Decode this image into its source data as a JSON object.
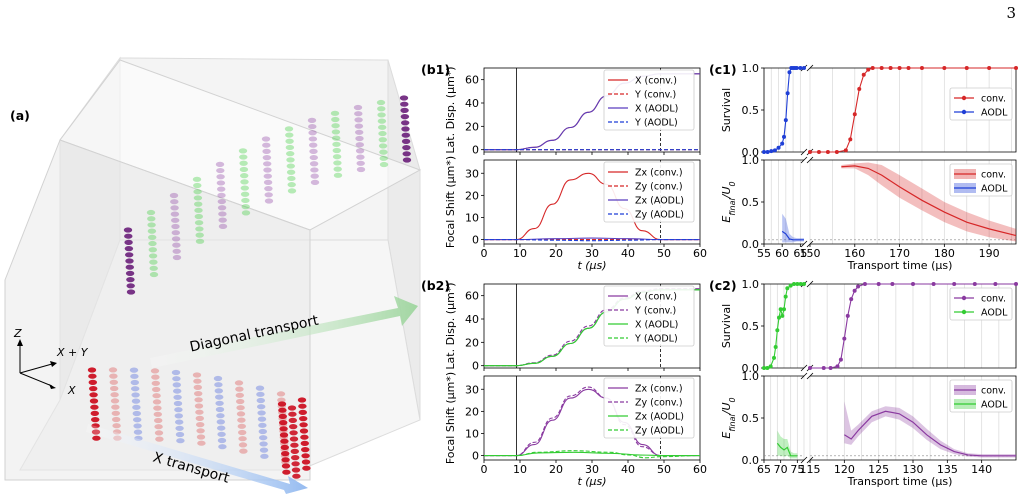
{
  "page_number": "3",
  "colors": {
    "red": "#d62728",
    "blue": "#1f3fd6",
    "purple": "#8a3aa0",
    "green": "#33cc33",
    "violet": "#5a3fbf",
    "red_fill": "#f2a3a3",
    "blue_fill": "#a9b4f2",
    "purple_fill": "#d4a8df",
    "green_fill": "#a8f0a8"
  },
  "panel_a": {
    "label": "(a)",
    "axis_z": "Z",
    "axis_xy": "X + Y",
    "axis_x": "X",
    "arrow_diagonal": "Diagonal transport",
    "arrow_x": "X transport"
  },
  "chart_data": [
    {
      "id": "b1_top",
      "panel_label": "(b1)",
      "type": "line",
      "xlim": [
        0,
        60
      ],
      "ylim": [
        -2,
        70
      ],
      "x_ticks": [
        0,
        10,
        20,
        30,
        40,
        50,
        60
      ],
      "y_ticks": [
        0,
        20,
        40,
        60
      ],
      "xlabel": "",
      "ylabel": "Lat. Disp. (μm*)",
      "vlines": [
        {
          "x": 9,
          "style": "solid"
        },
        {
          "x": 49,
          "style": "dashed"
        }
      ],
      "series": [
        {
          "name": "X (conv.)",
          "color": "#d62728",
          "dash": "solid",
          "x": [
            0,
            9,
            14,
            19,
            24,
            29,
            34,
            39,
            44,
            49,
            60
          ],
          "y": [
            0,
            0,
            2,
            8,
            19,
            32,
            46,
            57,
            63,
            65,
            65
          ]
        },
        {
          "name": "Y (conv.)",
          "color": "#d62728",
          "dash": "dashed",
          "x": [
            0,
            60
          ],
          "y": [
            0,
            0
          ]
        },
        {
          "name": "X (AODL)",
          "color": "#5a3fbf",
          "dash": "solid",
          "x": [
            0,
            9,
            14,
            19,
            24,
            29,
            34,
            39,
            44,
            49,
            60
          ],
          "y": [
            0,
            0,
            2,
            8,
            19,
            32,
            46,
            57,
            63,
            65,
            65
          ]
        },
        {
          "name": "Y (AODL)",
          "color": "#1f3fd6",
          "dash": "dashed",
          "x": [
            0,
            60
          ],
          "y": [
            0,
            0
          ]
        }
      ]
    },
    {
      "id": "b1_bottom",
      "type": "line",
      "xlim": [
        0,
        60
      ],
      "ylim": [
        -2,
        36
      ],
      "x_ticks": [
        0,
        10,
        20,
        30,
        40,
        50,
        60
      ],
      "y_ticks": [
        0,
        10,
        20,
        30
      ],
      "xlabel": "t (μs)",
      "ylabel": "Focal Shift (μm*)",
      "vlines": [
        {
          "x": 9,
          "style": "solid"
        },
        {
          "x": 49,
          "style": "dashed"
        }
      ],
      "series": [
        {
          "name": "Zx (conv.)",
          "color": "#d62728",
          "dash": "solid",
          "x": [
            0,
            9,
            14,
            19,
            24,
            29,
            34,
            39,
            44,
            49,
            60
          ],
          "y": [
            0,
            0,
            5,
            16,
            27,
            30,
            25,
            14,
            4,
            0,
            0
          ]
        },
        {
          "name": "Zy (conv.)",
          "color": "#d62728",
          "dash": "dashed",
          "x": [
            0,
            60
          ],
          "y": [
            0,
            0
          ]
        },
        {
          "name": "Zx (AODL)",
          "color": "#5a3fbf",
          "dash": "solid",
          "x": [
            0,
            9,
            20,
            30,
            40,
            49,
            60
          ],
          "y": [
            0,
            0,
            0.4,
            0.7,
            0.4,
            0,
            0
          ]
        },
        {
          "name": "Zy (AODL)",
          "color": "#1f3fd6",
          "dash": "dashed",
          "x": [
            0,
            9,
            20,
            30,
            40,
            49,
            60
          ],
          "y": [
            0,
            0,
            -0.3,
            -0.5,
            -0.3,
            0,
            0
          ]
        }
      ]
    },
    {
      "id": "b2_top",
      "panel_label": "(b2)",
      "type": "line",
      "xlim": [
        0,
        60
      ],
      "ylim": [
        -2,
        70
      ],
      "x_ticks": [
        0,
        10,
        20,
        30,
        40,
        50,
        60
      ],
      "y_ticks": [
        0,
        20,
        40,
        60
      ],
      "xlabel": "",
      "ylabel": "Lat. Disp. (μm*)",
      "vlines": [
        {
          "x": 9,
          "style": "solid"
        },
        {
          "x": 49,
          "style": "dashed"
        }
      ],
      "series": [
        {
          "name": "X (conv.)",
          "color": "#8a3aa0",
          "dash": "solid",
          "x": [
            0,
            9,
            14,
            19,
            24,
            29,
            34,
            39,
            44,
            49,
            60
          ],
          "y": [
            0,
            0,
            2,
            8,
            19,
            32,
            46,
            57,
            63,
            65,
            65
          ]
        },
        {
          "name": "Y (conv.)",
          "color": "#8a3aa0",
          "dash": "dashed",
          "x": [
            0,
            9,
            14,
            19,
            24,
            29,
            34,
            39,
            44,
            49,
            60
          ],
          "y": [
            0,
            0,
            2.5,
            9,
            21,
            34,
            48,
            58,
            64,
            66,
            66
          ]
        },
        {
          "name": "X (AODL)",
          "color": "#33cc33",
          "dash": "solid",
          "x": [
            0,
            9,
            14,
            19,
            24,
            29,
            34,
            39,
            44,
            49,
            60
          ],
          "y": [
            0,
            0,
            2,
            8,
            19,
            32,
            46,
            57,
            63,
            65,
            65
          ]
        },
        {
          "name": "Y (AODL)",
          "color": "#33cc33",
          "dash": "dashed",
          "x": [
            0,
            9,
            14,
            19,
            24,
            29,
            34,
            39,
            44,
            49,
            60
          ],
          "y": [
            0,
            0,
            2,
            8,
            19,
            32,
            46,
            57,
            63,
            65,
            65
          ]
        }
      ]
    },
    {
      "id": "b2_bottom",
      "type": "line",
      "xlim": [
        0,
        60
      ],
      "ylim": [
        -2,
        36
      ],
      "x_ticks": [
        0,
        10,
        20,
        30,
        40,
        50,
        60
      ],
      "y_ticks": [
        0,
        10,
        20,
        30
      ],
      "xlabel": "t (μs)",
      "ylabel": "Focal Shift (μm*)",
      "vlines": [
        {
          "x": 9,
          "style": "solid"
        },
        {
          "x": 49,
          "style": "dashed"
        }
      ],
      "series": [
        {
          "name": "Zx (conv.)",
          "color": "#8a3aa0",
          "dash": "solid",
          "x": [
            0,
            9,
            14,
            19,
            24,
            29,
            34,
            39,
            44,
            49,
            60
          ],
          "y": [
            0,
            0,
            5,
            16,
            26,
            30,
            26,
            15,
            5,
            0,
            0
          ]
        },
        {
          "name": "Zy (conv.)",
          "color": "#8a3aa0",
          "dash": "dashed",
          "x": [
            0,
            9,
            14,
            19,
            24,
            29,
            34,
            39,
            44,
            49,
            60
          ],
          "y": [
            0,
            0,
            6,
            17,
            27,
            31,
            26,
            14,
            4,
            0,
            0
          ]
        },
        {
          "name": "Zx (AODL)",
          "color": "#33cc33",
          "dash": "solid",
          "x": [
            0,
            9,
            15,
            25,
            35,
            45,
            49,
            60
          ],
          "y": [
            0,
            0,
            1.2,
            1.5,
            1.0,
            0.2,
            0,
            0
          ]
        },
        {
          "name": "Zy (AODL)",
          "color": "#33cc33",
          "dash": "dashed",
          "x": [
            0,
            9,
            15,
            25,
            35,
            40,
            45,
            49,
            60
          ],
          "y": [
            0,
            0,
            1.5,
            2.2,
            1.5,
            0.3,
            -1,
            -0.5,
            0
          ]
        }
      ]
    },
    {
      "id": "c1_top",
      "panel_label": "(c1)",
      "type": "scatter",
      "broken_x": true,
      "seg_a": [
        55,
        66
      ],
      "seg_b": [
        150,
        196
      ],
      "ylim": [
        0,
        1
      ],
      "y_ticks": [
        0,
        0.5,
        1.0
      ],
      "ylabel": "Survival",
      "series": [
        {
          "name": "conv.",
          "color": "#d62728",
          "x": [
            150,
            152,
            154,
            156,
            158,
            159,
            160,
            161,
            162,
            163,
            164,
            166,
            168,
            170,
            172,
            175,
            180,
            185,
            190,
            196
          ],
          "y": [
            0,
            0,
            0,
            0,
            0.02,
            0.15,
            0.45,
            0.75,
            0.92,
            0.98,
            1,
            1,
            1,
            1,
            1,
            1,
            1,
            1,
            1,
            1
          ]
        },
        {
          "name": "AODL",
          "color": "#1f3fd6",
          "x": [
            55,
            56,
            57,
            58,
            59,
            60,
            60.5,
            61,
            61.5,
            62,
            62.5,
            63,
            63.5,
            64,
            65,
            66
          ],
          "y": [
            0,
            0,
            0.01,
            0.02,
            0.05,
            0.1,
            0.18,
            0.38,
            0.7,
            0.95,
            1,
            1,
            1,
            1,
            1,
            1
          ]
        }
      ]
    },
    {
      "id": "c1_bottom",
      "type": "band",
      "broken_x": true,
      "seg_a": [
        55,
        66
      ],
      "seg_b": [
        150,
        196
      ],
      "ylim": [
        0,
        1
      ],
      "y_ticks": [
        0,
        0.5,
        1.0
      ],
      "x_ticks_a": [
        55,
        60,
        65
      ],
      "x_ticks_b": [
        150,
        160,
        170,
        180,
        190
      ],
      "xlabel": "Transport time (μs)",
      "ylabel": "E_final/U_0",
      "hline": 0.05,
      "series": [
        {
          "name": "conv.",
          "color": "#d62728",
          "x": [
            157,
            160,
            163,
            166,
            170,
            175,
            180,
            185,
            190,
            196
          ],
          "y": [
            0.92,
            0.93,
            0.9,
            0.82,
            0.68,
            0.52,
            0.38,
            0.26,
            0.18,
            0.1
          ],
          "lo": [
            0.9,
            0.9,
            0.82,
            0.7,
            0.55,
            0.4,
            0.26,
            0.15,
            0.08,
            0.03
          ],
          "hi": [
            0.94,
            0.96,
            0.97,
            0.94,
            0.82,
            0.66,
            0.5,
            0.38,
            0.28,
            0.18
          ]
        },
        {
          "name": "AODL",
          "color": "#1f3fd6",
          "x": [
            60,
            61,
            62,
            63,
            64,
            65,
            66
          ],
          "y": [
            0.15,
            0.12,
            0.06,
            0.05,
            0.05,
            0.05,
            0.05
          ],
          "lo": [
            0.02,
            0.02,
            0.02,
            0.02,
            0.03,
            0.03,
            0.03
          ],
          "hi": [
            0.36,
            0.3,
            0.12,
            0.08,
            0.07,
            0.07,
            0.07
          ]
        }
      ]
    },
    {
      "id": "c2_top",
      "panel_label": "(c2)",
      "type": "scatter",
      "broken_x": true,
      "seg_a": [
        65,
        77
      ],
      "seg_b": [
        115,
        145
      ],
      "ylim": [
        0,
        1
      ],
      "y_ticks": [
        0,
        0.5,
        1.0
      ],
      "ylabel": "Survival",
      "series": [
        {
          "name": "conv.",
          "color": "#8a3aa0",
          "x": [
            115,
            117,
            118,
            119,
            119.5,
            120,
            120.5,
            121,
            121.5,
            122,
            123,
            125,
            127,
            130,
            133,
            136,
            139,
            142,
            145
          ],
          "y": [
            0,
            0,
            0,
            0.02,
            0.1,
            0.35,
            0.62,
            0.82,
            0.92,
            0.97,
            1,
            1,
            1,
            1,
            1,
            1,
            1,
            1,
            1
          ]
        },
        {
          "name": "AODL",
          "color": "#33cc33",
          "x": [
            65,
            66,
            67,
            68,
            68.5,
            69,
            69.5,
            70,
            70.5,
            71,
            71.5,
            72,
            73,
            74,
            75,
            76,
            77
          ],
          "y": [
            0,
            0,
            0.02,
            0.12,
            0.25,
            0.45,
            0.6,
            0.7,
            0.62,
            0.7,
            0.85,
            0.95,
            0.98,
            1,
            1,
            1,
            1
          ]
        }
      ]
    },
    {
      "id": "c2_bottom",
      "type": "band",
      "broken_x": true,
      "seg_a": [
        65,
        77
      ],
      "seg_b": [
        115,
        145
      ],
      "ylim": [
        0,
        1
      ],
      "y_ticks": [
        0,
        0.5,
        1.0
      ],
      "x_ticks_a": [
        65,
        70,
        75
      ],
      "x_ticks_b": [
        115,
        120,
        125,
        130,
        135,
        140
      ],
      "xlabel": "Transport time (μs)",
      "ylabel": "E_final/U_0",
      "hline": 0.05,
      "series": [
        {
          "name": "conv.",
          "color": "#8a3aa0",
          "x": [
            120,
            121,
            122,
            124,
            126,
            128,
            130,
            132,
            134,
            136,
            138,
            140,
            142,
            145
          ],
          "y": [
            0.3,
            0.25,
            0.35,
            0.52,
            0.58,
            0.55,
            0.45,
            0.3,
            0.18,
            0.1,
            0.06,
            0.05,
            0.05,
            0.05
          ],
          "lo": [
            0.2,
            0.18,
            0.28,
            0.45,
            0.52,
            0.48,
            0.38,
            0.24,
            0.13,
            0.07,
            0.04,
            0.03,
            0.03,
            0.03
          ],
          "hi": [
            0.7,
            0.35,
            0.42,
            0.58,
            0.64,
            0.62,
            0.52,
            0.37,
            0.23,
            0.13,
            0.08,
            0.07,
            0.07,
            0.07
          ]
        },
        {
          "name": "AODL",
          "color": "#33cc33",
          "x": [
            69,
            70,
            71,
            72,
            73,
            74,
            75
          ],
          "y": [
            0.2,
            0.15,
            0.12,
            0.15,
            0.05,
            0.05,
            0.05
          ],
          "lo": [
            0.05,
            0.05,
            0.04,
            0.05,
            0.02,
            0.02,
            0.02
          ],
          "hi": [
            0.35,
            0.28,
            0.25,
            0.25,
            0.1,
            0.08,
            0.08
          ]
        }
      ]
    }
  ]
}
